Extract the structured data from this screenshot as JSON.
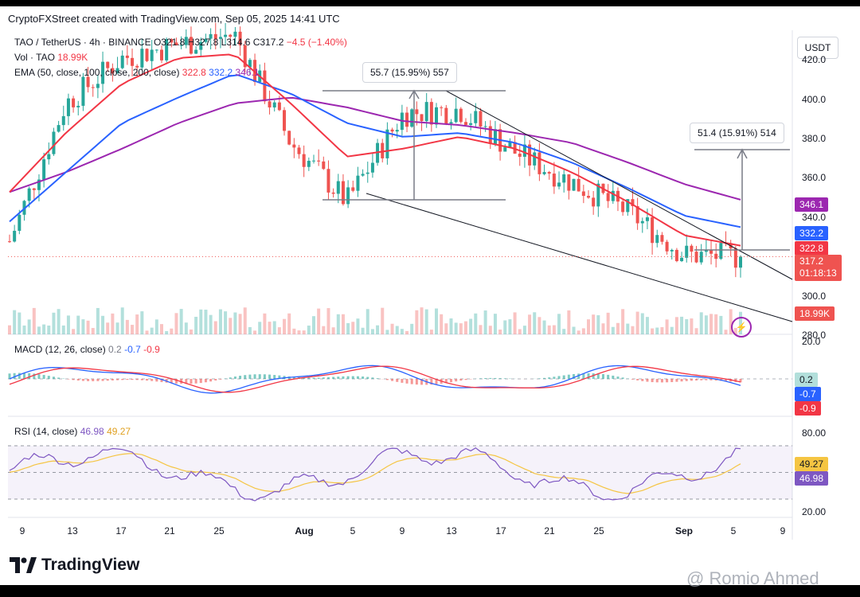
{
  "header": {
    "text": "CryptoFXStreet created with TradingView.com, Sep 05, 2025 14:41 UTC"
  },
  "legend": {
    "symbol": "TAO / TetherUS · 4h · BINANCE",
    "ohlc_partial": "O321.8 H327.8 L314.6 C317.2",
    "change": "−4.5 (−1.40%)",
    "vol_label": "Vol · TAO",
    "vol_value": "18.99K",
    "ema_label": "EMA (50, close, 100, close, 200, close)",
    "ema50": "322.8",
    "ema100": "332.2",
    "ema200": "346.1"
  },
  "currency_button": "USDT",
  "price_axis": {
    "labels": [
      "420.0",
      "400.0",
      "380.0",
      "360.0",
      "340.0",
      "300.0",
      "280.0"
    ]
  },
  "badges": {
    "ema200": "346.1",
    "ema100": "332.2",
    "ema50": "322.8",
    "last_price": "317.2",
    "countdown": "01:18:13",
    "volume": "18.99K",
    "macd_hist": "0.2",
    "macd_line": "-0.7",
    "signal_line": "-0.9",
    "rsi_ma": "49.27",
    "rsi": "46.98"
  },
  "callouts": {
    "upper": "55.7 (15.95%) 557",
    "target": "51.4 (15.91%) 514"
  },
  "macd": {
    "label": "MACD (12, 26, close)",
    "hist": "0.2",
    "macd": "-0.7",
    "signal": "-0.9",
    "axis_top": "20.0"
  },
  "rsi": {
    "label": "RSI (14, close)",
    "value": "46.98",
    "ma": "49.27",
    "axis": [
      "80.00",
      "20.00"
    ]
  },
  "time_axis": [
    "9",
    "13",
    "17",
    "21",
    "25",
    "Aug",
    "5",
    "9",
    "13",
    "17",
    "21",
    "25",
    "Sep",
    "5",
    "9"
  ],
  "footer": {
    "brand": "TradingView",
    "watermark": "@ Romio Ahmed"
  },
  "colors": {
    "up": "#26a69a",
    "down": "#ef5350",
    "ema50": "#f23645",
    "ema100": "#2962ff",
    "ema200": "#9c27b0",
    "rsi": "#7e57c2",
    "rsi_ma": "#f5c542"
  },
  "chart_data": {
    "type": "candlestick",
    "symbol": "TAO / TetherUS",
    "interval": "4h",
    "x": [
      "Jul 9",
      "Jul 13",
      "Jul 17",
      "Jul 21",
      "Jul 25",
      "Aug 1",
      "Aug 5",
      "Aug 9",
      "Aug 13",
      "Aug 17",
      "Aug 21",
      "Aug 25",
      "Sep 1",
      "Sep 5"
    ],
    "close": [
      325,
      395,
      418,
      425,
      430,
      375,
      345,
      390,
      392,
      370,
      355,
      340,
      318,
      317.2
    ],
    "ema50": [
      350,
      380,
      405,
      418,
      420,
      395,
      368,
      372,
      378,
      372,
      360,
      345,
      328,
      322.8
    ],
    "ema100": [
      335,
      360,
      385,
      398,
      410,
      400,
      385,
      378,
      380,
      375,
      365,
      352,
      338,
      332.2
    ],
    "ema200": [
      350,
      360,
      372,
      385,
      395,
      398,
      393,
      386,
      384,
      380,
      375,
      365,
      354,
      346.1
    ],
    "ylim": [
      280,
      425
    ],
    "last_price": 317.2,
    "annotations": [
      {
        "text": "55.7 (15.95%) 557",
        "from": 349,
        "to": 405
      },
      {
        "text": "51.4 (15.91%) 514",
        "from": 323,
        "to": 374
      }
    ],
    "indicators": {
      "macd": {
        "hist": 0.2,
        "macd": -0.7,
        "signal": -0.9
      },
      "rsi": {
        "value": 46.98,
        "ma": 49.27,
        "levels": [
          70,
          50,
          30
        ]
      }
    }
  }
}
